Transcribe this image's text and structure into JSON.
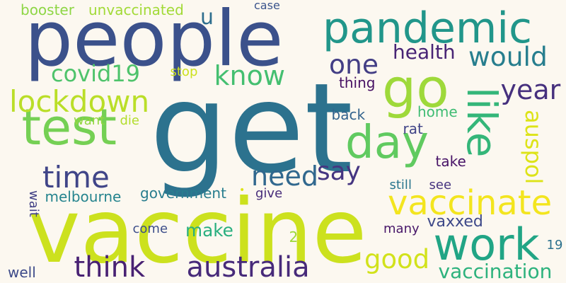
{
  "words": [
    {
      "text": "get",
      "color": "#2c728e"
    },
    {
      "text": "vaccine",
      "color": "#cce11e"
    },
    {
      "text": "people",
      "color": "#3b518b"
    },
    {
      "text": "go",
      "color": "#9ed93a"
    },
    {
      "text": "pandemic",
      "color": "#21968a"
    },
    {
      "text": "like",
      "color": "#34b679"
    },
    {
      "text": "test",
      "color": "#75d054"
    },
    {
      "text": "day",
      "color": "#60ca60"
    },
    {
      "text": "work",
      "color": "#21a585"
    },
    {
      "text": "vaccinate",
      "color": "#f3e51e"
    },
    {
      "text": "australia",
      "color": "#472a7a"
    },
    {
      "text": "think",
      "color": "#482173"
    },
    {
      "text": "lockdown",
      "color": "#bade28"
    },
    {
      "text": "time",
      "color": "#404588"
    },
    {
      "text": "say",
      "color": "#453581"
    },
    {
      "text": "need",
      "color": "#31688e"
    },
    {
      "text": "would",
      "color": "#277e8e"
    },
    {
      "text": "know",
      "color": "#44bf70"
    },
    {
      "text": "covid19",
      "color": "#4ec36b"
    },
    {
      "text": "one",
      "color": "#433e85"
    },
    {
      "text": "year",
      "color": "#46307e"
    },
    {
      "text": "good",
      "color": "#d2e21b"
    },
    {
      "text": "vaccination",
      "color": "#2db27d"
    },
    {
      "text": "auspol",
      "color": "#dde318"
    },
    {
      "text": "health",
      "color": "#482475"
    },
    {
      "text": "make",
      "color": "#29af7f"
    },
    {
      "text": "u",
      "color": "#2e6e8e"
    },
    {
      "text": "booster",
      "color": "#8ed645"
    },
    {
      "text": "unvaccinated",
      "color": "#a2da37"
    },
    {
      "text": "case",
      "color": "#3a548c"
    },
    {
      "text": "stop",
      "color": "#cce11e"
    },
    {
      "text": "thing",
      "color": "#471164"
    },
    {
      "text": "back",
      "color": "#33638d"
    },
    {
      "text": "home",
      "color": "#3fbc73"
    },
    {
      "text": "rat",
      "color": "#404387"
    },
    {
      "text": "want",
      "color": "#93d741"
    },
    {
      "text": "die",
      "color": "#b2dd2d"
    },
    {
      "text": "take",
      "color": "#481467"
    },
    {
      "text": "wait",
      "color": "#424186"
    },
    {
      "text": "melbourne",
      "color": "#25848e"
    },
    {
      "text": "government",
      "color": "#287d8e"
    },
    {
      "text": "give",
      "color": "#472c7a"
    },
    {
      "text": "still",
      "color": "#2a768e"
    },
    {
      "text": "see",
      "color": "#463480"
    },
    {
      "text": "come",
      "color": "#3d4e8a"
    },
    {
      "text": "2",
      "color": "#9ed93a"
    },
    {
      "text": "many",
      "color": "#481769"
    },
    {
      "text": "vaxxed",
      "color": "#3e4989"
    },
    {
      "text": "19",
      "color": "#2c718e"
    },
    {
      "text": "well",
      "color": "#3d4a89"
    },
    {
      "text": "•",
      "color": "#dde318"
    }
  ]
}
